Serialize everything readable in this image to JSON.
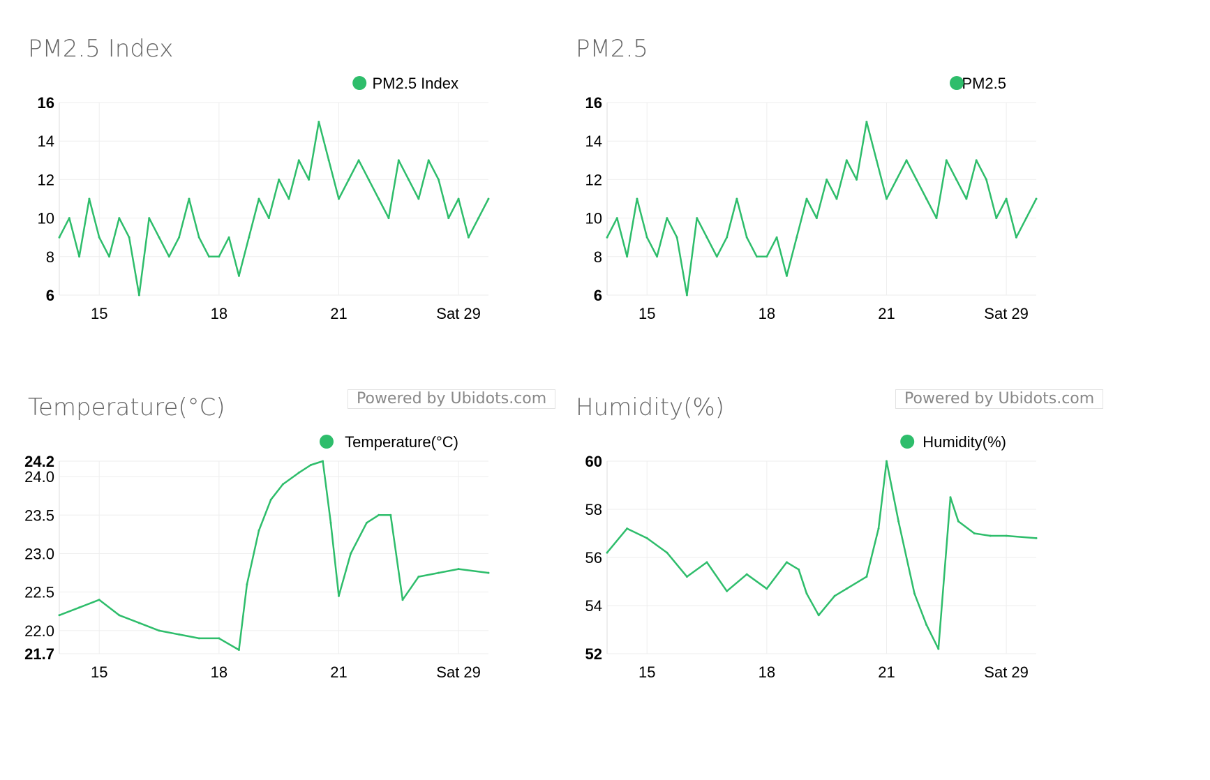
{
  "panels": [
    {
      "title": "PM2.5 Index",
      "powered_by": "Powered by Ubidots.com"
    },
    {
      "title": "PM2.5",
      "powered_by": "Powered by Ubidots.com"
    },
    {
      "title": "Temperature(°C)"
    },
    {
      "title": "Humidity(%)"
    }
  ],
  "colors": {
    "series": "#2ebd6b",
    "grid": "#eeeeee",
    "title": "#666666"
  },
  "chart_data": [
    {
      "type": "line",
      "title": "PM2.5 Index",
      "x_tick_labels": [
        "15",
        "18",
        "21",
        "Sat 29"
      ],
      "x": [
        14,
        14.25,
        14.5,
        14.75,
        15,
        15.25,
        15.5,
        15.75,
        16,
        16.25,
        16.5,
        16.75,
        17,
        17.25,
        17.5,
        17.75,
        18,
        18.25,
        18.5,
        18.75,
        19,
        19.25,
        19.5,
        19.75,
        20,
        20.25,
        20.5,
        20.75,
        21,
        21.25,
        21.5,
        21.75,
        22,
        22.25,
        22.5,
        22.75,
        23,
        23.25,
        23.5,
        23.75,
        24,
        24.25,
        24.5,
        24.75
      ],
      "series": [
        {
          "name": "PM2.5 Index",
          "values": [
            9,
            10,
            8,
            11,
            9,
            8,
            10,
            9,
            6,
            10,
            9,
            8,
            9,
            11,
            9,
            8,
            8,
            9,
            7,
            9,
            11,
            10,
            12,
            11,
            13,
            12,
            15,
            13,
            11,
            12,
            13,
            12,
            11,
            10,
            13,
            12,
            11,
            13,
            12,
            10,
            11,
            9,
            10,
            11
          ]
        }
      ],
      "y_ticks": [
        6,
        8,
        10,
        12,
        14,
        16
      ],
      "ylim": [
        6,
        16
      ],
      "legend": "top-right",
      "grid": true
    },
    {
      "type": "line",
      "title": "PM2.5",
      "x_tick_labels": [
        "15",
        "18",
        "21",
        "Sat 29"
      ],
      "x": [
        14,
        14.25,
        14.5,
        14.75,
        15,
        15.25,
        15.5,
        15.75,
        16,
        16.25,
        16.5,
        16.75,
        17,
        17.25,
        17.5,
        17.75,
        18,
        18.25,
        18.5,
        18.75,
        19,
        19.25,
        19.5,
        19.75,
        20,
        20.25,
        20.5,
        20.75,
        21,
        21.25,
        21.5,
        21.75,
        22,
        22.25,
        22.5,
        22.75,
        23,
        23.25,
        23.5,
        23.75,
        24,
        24.25,
        24.5,
        24.75
      ],
      "series": [
        {
          "name": "PM2.5",
          "values": [
            9,
            10,
            8,
            11,
            9,
            8,
            10,
            9,
            6,
            10,
            9,
            8,
            9,
            11,
            9,
            8,
            8,
            9,
            7,
            9,
            11,
            10,
            12,
            11,
            13,
            12,
            15,
            13,
            11,
            12,
            13,
            12,
            11,
            10,
            13,
            12,
            11,
            13,
            12,
            10,
            11,
            9,
            10,
            11
          ]
        }
      ],
      "y_ticks": [
        6,
        8,
        10,
        12,
        14,
        16
      ],
      "ylim": [
        6,
        16
      ],
      "legend": "top-right",
      "grid": true
    },
    {
      "type": "line",
      "title": "Temperature(°C)",
      "x_tick_labels": [
        "15",
        "18",
        "21",
        "Sat 29"
      ],
      "x": [
        14,
        14.5,
        15,
        15.5,
        16,
        16.5,
        17,
        17.5,
        18,
        18.5,
        18.7,
        19,
        19.3,
        19.6,
        20,
        20.3,
        20.6,
        20.8,
        21,
        21.3,
        21.7,
        22,
        22.3,
        22.6,
        23,
        23.5,
        24,
        24.75
      ],
      "series": [
        {
          "name": "Temperature(°C)",
          "values": [
            22.2,
            22.3,
            22.4,
            22.2,
            22.1,
            22.0,
            21.95,
            21.9,
            21.9,
            21.75,
            22.6,
            23.3,
            23.7,
            23.9,
            24.05,
            24.15,
            24.2,
            23.4,
            22.45,
            23.0,
            23.4,
            23.5,
            23.5,
            22.4,
            22.7,
            22.75,
            22.8,
            22.75
          ]
        }
      ],
      "y_ticks": [
        21.7,
        22.0,
        22.5,
        23.0,
        23.5,
        24.0,
        24.2
      ],
      "ylim": [
        21.7,
        24.2
      ],
      "legend": "top-right",
      "grid": true
    },
    {
      "type": "line",
      "title": "Humidity(%)",
      "x_tick_labels": [
        "15",
        "18",
        "21",
        "Sat 29"
      ],
      "x": [
        14,
        14.5,
        15,
        15.5,
        16,
        16.5,
        17,
        17.5,
        18,
        18.5,
        18.8,
        19,
        19.3,
        19.7,
        20,
        20.5,
        20.8,
        21,
        21.3,
        21.7,
        22,
        22.3,
        22.6,
        22.8,
        23.2,
        23.6,
        24,
        24.75
      ],
      "series": [
        {
          "name": "Humidity(%)",
          "values": [
            56.2,
            57.2,
            56.8,
            56.2,
            55.2,
            55.8,
            54.6,
            55.3,
            54.7,
            55.8,
            55.5,
            54.5,
            53.6,
            54.4,
            54.7,
            55.2,
            57.2,
            60.0,
            57.5,
            54.5,
            53.2,
            52.2,
            58.5,
            57.5,
            57.0,
            56.9,
            56.9,
            56.8
          ]
        }
      ],
      "y_ticks": [
        52,
        54,
        56,
        58,
        60
      ],
      "ylim": [
        52,
        60
      ],
      "legend": "top-right",
      "grid": true
    }
  ]
}
